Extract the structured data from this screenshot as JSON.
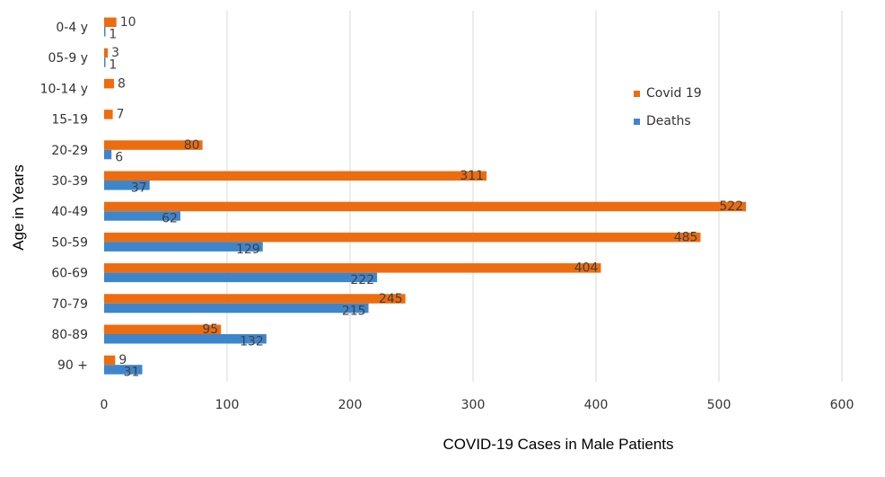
{
  "chart_data": {
    "type": "bar",
    "orientation": "horizontal",
    "categories": [
      "0-4 y",
      "05-9 y",
      "10-14 y",
      "15-19",
      "20-29",
      "30-39",
      "40-49",
      "50-59",
      "60-69",
      "70-79",
      "80-89",
      "90 +"
    ],
    "series": [
      {
        "name": "Covid 19",
        "color": "#ed6c0f",
        "values": [
          10,
          3,
          8,
          7,
          80,
          311,
          522,
          485,
          404,
          245,
          95,
          9
        ]
      },
      {
        "name": "Deaths",
        "color": "#3d86cc",
        "values": [
          1,
          1,
          null,
          null,
          6,
          37,
          62,
          129,
          222,
          215,
          132,
          31
        ]
      }
    ],
    "xlabel": "COVID-19 Cases in Male Patients",
    "ylabel": "Age in Years",
    "xlim": [
      0,
      600
    ],
    "xticks": [
      0,
      100,
      200,
      300,
      400,
      500,
      600
    ],
    "grid": true,
    "legend_position": "right"
  }
}
